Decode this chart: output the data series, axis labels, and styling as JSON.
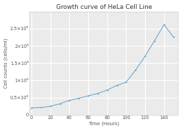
{
  "title": "Growth curve of HeLa Cell Line",
  "xlabel": "Time (Hours)",
  "ylabel": "Cell counts (cells/ml)",
  "x": [
    0,
    10,
    20,
    30,
    40,
    50,
    60,
    70,
    80,
    90,
    100,
    110,
    120,
    130,
    140,
    150
  ],
  "y": [
    200000.0,
    210000.0,
    250000.0,
    320000.0,
    420000.0,
    480000.0,
    550000.0,
    620000.0,
    720000.0,
    850000.0,
    950000.0,
    1300000.0,
    1700000.0,
    2150000.0,
    2620000.0,
    2250000.0
  ],
  "line_color": "#5B9EC9",
  "bg_color": "#ffffff",
  "plot_bg_color": "#ebebeb",
  "grid_color": "#ffffff",
  "ylim": [
    0,
    3000000.0
  ],
  "xlim": [
    -2,
    155
  ],
  "yticks": [
    0,
    500000.0,
    1000000.0,
    1500000.0,
    2000000.0,
    2500000.0
  ],
  "ytick_labels": [
    "0",
    "0.5×10⁶",
    "1×10⁶",
    "1.5×10⁶",
    "2×10⁶",
    "2.5×10⁶"
  ],
  "xticks": [
    0,
    20,
    40,
    60,
    80,
    100,
    120,
    140
  ],
  "title_fontsize": 6.5,
  "label_fontsize": 5,
  "tick_fontsize": 4.8
}
